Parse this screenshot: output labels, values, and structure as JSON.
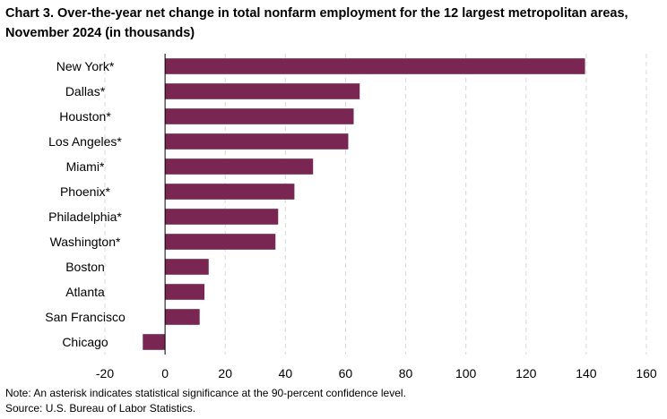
{
  "title": "Chart 3. Over-the-year net change in total nonfarm employment for the 12 largest metropolitan areas, November 2024 (in thousands)",
  "note": "Note: An asterisk indicates statistical significance at the 90-percent confidence level.",
  "source": "Source: U.S. Bureau of Labor Statistics.",
  "chart_data": {
    "type": "bar",
    "orientation": "horizontal",
    "title": "Chart 3. Over-the-year net change in total nonfarm employment for the 12 largest metropolitan areas, November 2024 (in thousands)",
    "xlabel": "",
    "ylabel": "",
    "categories": [
      "New York*",
      "Dallas*",
      "Houston*",
      "Los Angeles*",
      "Miami*",
      "Phoenix*",
      "Philadelphia*",
      "Washington*",
      "Boston",
      "Atlanta",
      "San Francisco",
      "Chicago"
    ],
    "values": [
      139.6,
      64.7,
      62.7,
      60.9,
      49.2,
      43.0,
      37.6,
      36.7,
      14.5,
      13.1,
      11.5,
      -7.4
    ],
    "xlim": [
      -20,
      160
    ],
    "xticks": [
      -20,
      0,
      20,
      40,
      60,
      80,
      100,
      120,
      140,
      160
    ],
    "grid": "vertical dashed",
    "colors": {
      "bar": "#7a2652",
      "grid": "#d9d9d9",
      "axis": "#000000"
    }
  }
}
